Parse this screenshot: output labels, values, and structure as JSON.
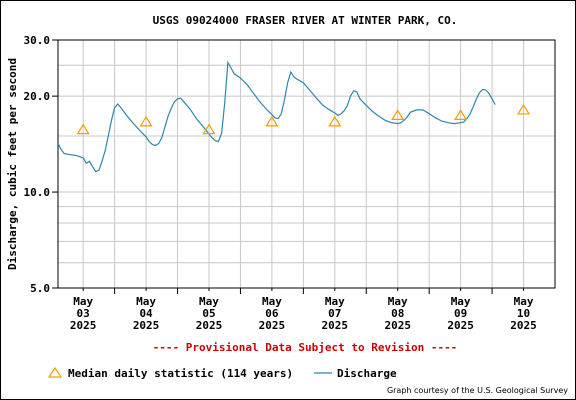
{
  "chart_data": {
    "type": "line",
    "title": "USGS 09024000 FRASER RIVER AT WINTER PARK, CO.",
    "ylabel": "Discharge, cubic feet per second",
    "xlabel": "",
    "y_scale": "log",
    "ylim": [
      5.0,
      30.0
    ],
    "y_major_ticks": [
      {
        "value": 5.0,
        "label": "5.0"
      },
      {
        "value": 10.0,
        "label": "10.0"
      },
      {
        "value": 20.0,
        "label": "20.0"
      },
      {
        "value": 30.0,
        "label": "30.0"
      }
    ],
    "y_minor_gridlines": [
      6,
      7,
      8,
      9,
      15,
      25
    ],
    "x_range_days": [
      2.6,
      10.5
    ],
    "x_ticks": [
      {
        "value": 3,
        "month": "May",
        "day": "03",
        "year": "2025"
      },
      {
        "value": 4,
        "month": "May",
        "day": "04",
        "year": "2025"
      },
      {
        "value": 5,
        "month": "May",
        "day": "05",
        "year": "2025"
      },
      {
        "value": 6,
        "month": "May",
        "day": "06",
        "year": "2025"
      },
      {
        "value": 7,
        "month": "May",
        "day": "07",
        "year": "2025"
      },
      {
        "value": 8,
        "month": "May",
        "day": "08",
        "year": "2025"
      },
      {
        "value": 9,
        "month": "May",
        "day": "09",
        "year": "2025"
      },
      {
        "value": 10,
        "month": "May",
        "day": "10",
        "year": "2025"
      }
    ],
    "x_minor_gridlines": [
      3.5,
      4.5,
      5.5,
      6.5,
      7.5,
      8.5,
      9.5
    ],
    "grid": true,
    "series": [
      {
        "name": "Discharge",
        "color": "#2e86ab",
        "style": "line",
        "points": [
          [
            2.6,
            14.2
          ],
          [
            2.65,
            13.6
          ],
          [
            2.7,
            13.2
          ],
          [
            2.8,
            13.1
          ],
          [
            2.9,
            13.0
          ],
          [
            3.0,
            12.8
          ],
          [
            3.05,
            12.3
          ],
          [
            3.1,
            12.5
          ],
          [
            3.15,
            12.0
          ],
          [
            3.2,
            11.6
          ],
          [
            3.25,
            11.7
          ],
          [
            3.3,
            12.5
          ],
          [
            3.35,
            13.5
          ],
          [
            3.4,
            15.0
          ],
          [
            3.45,
            16.8
          ],
          [
            3.5,
            18.4
          ],
          [
            3.55,
            18.9
          ],
          [
            3.6,
            18.4
          ],
          [
            3.7,
            17.3
          ],
          [
            3.8,
            16.4
          ],
          [
            3.9,
            15.6
          ],
          [
            4.0,
            14.9
          ],
          [
            4.05,
            14.4
          ],
          [
            4.1,
            14.1
          ],
          [
            4.15,
            14.0
          ],
          [
            4.2,
            14.2
          ],
          [
            4.25,
            14.8
          ],
          [
            4.3,
            16.0
          ],
          [
            4.35,
            17.3
          ],
          [
            4.4,
            18.3
          ],
          [
            4.45,
            19.2
          ],
          [
            4.5,
            19.6
          ],
          [
            4.55,
            19.7
          ],
          [
            4.6,
            19.2
          ],
          [
            4.7,
            18.2
          ],
          [
            4.8,
            17.0
          ],
          [
            4.9,
            16.1
          ],
          [
            5.0,
            15.2
          ],
          [
            5.05,
            14.8
          ],
          [
            5.1,
            14.5
          ],
          [
            5.15,
            14.4
          ],
          [
            5.2,
            15.3
          ],
          [
            5.25,
            19.0
          ],
          [
            5.3,
            25.5
          ],
          [
            5.35,
            24.5
          ],
          [
            5.4,
            23.5
          ],
          [
            5.5,
            22.8
          ],
          [
            5.6,
            21.8
          ],
          [
            5.7,
            20.5
          ],
          [
            5.8,
            19.3
          ],
          [
            5.9,
            18.3
          ],
          [
            6.0,
            17.5
          ],
          [
            6.05,
            17.1
          ],
          [
            6.1,
            17.0
          ],
          [
            6.15,
            17.6
          ],
          [
            6.2,
            19.5
          ],
          [
            6.25,
            22.0
          ],
          [
            6.3,
            23.8
          ],
          [
            6.35,
            23.0
          ],
          [
            6.4,
            22.6
          ],
          [
            6.5,
            22.0
          ],
          [
            6.6,
            20.9
          ],
          [
            6.7,
            19.8
          ],
          [
            6.8,
            18.8
          ],
          [
            6.9,
            18.2
          ],
          [
            7.0,
            17.7
          ],
          [
            7.05,
            17.4
          ],
          [
            7.1,
            17.6
          ],
          [
            7.15,
            18.0
          ],
          [
            7.2,
            18.7
          ],
          [
            7.25,
            20.0
          ],
          [
            7.3,
            20.8
          ],
          [
            7.35,
            20.6
          ],
          [
            7.4,
            19.6
          ],
          [
            7.5,
            18.7
          ],
          [
            7.6,
            17.9
          ],
          [
            7.7,
            17.3
          ],
          [
            7.8,
            16.8
          ],
          [
            7.9,
            16.5
          ],
          [
            8.0,
            16.4
          ],
          [
            8.05,
            16.5
          ],
          [
            8.1,
            16.8
          ],
          [
            8.15,
            17.2
          ],
          [
            8.2,
            17.8
          ],
          [
            8.3,
            18.1
          ],
          [
            8.4,
            18.1
          ],
          [
            8.5,
            17.6
          ],
          [
            8.6,
            17.1
          ],
          [
            8.7,
            16.7
          ],
          [
            8.8,
            16.5
          ],
          [
            8.9,
            16.4
          ],
          [
            9.0,
            16.5
          ],
          [
            9.05,
            16.6
          ],
          [
            9.1,
            17.0
          ],
          [
            9.15,
            17.6
          ],
          [
            9.2,
            18.5
          ],
          [
            9.25,
            19.6
          ],
          [
            9.3,
            20.5
          ],
          [
            9.35,
            21.0
          ],
          [
            9.4,
            20.9
          ],
          [
            9.45,
            20.4
          ],
          [
            9.5,
            19.6
          ],
          [
            9.55,
            18.8
          ]
        ]
      },
      {
        "name": "Median daily statistic (114 years)",
        "color": "#f0a000",
        "style": "triangle",
        "points": [
          [
            3.0,
            15.7
          ],
          [
            4.0,
            16.6
          ],
          [
            5.0,
            15.7
          ],
          [
            6.0,
            16.6
          ],
          [
            7.0,
            16.6
          ],
          [
            8.0,
            17.4
          ],
          [
            9.0,
            17.4
          ],
          [
            10.0,
            18.1
          ]
        ]
      }
    ],
    "legend": {
      "placement": "bottom",
      "median_label": "Median daily statistic (114 years)",
      "discharge_label": "Discharge"
    },
    "provisional_text": "---- Provisional Data Subject to Revision ----",
    "courtesy_text": "Graph courtesy of the U.S. Geological Survey"
  },
  "colors": {
    "discharge_line": "#2e86ab",
    "median_marker": "#f0a000",
    "provisional": "#cc0000",
    "gridline": "#c8c8c8"
  }
}
